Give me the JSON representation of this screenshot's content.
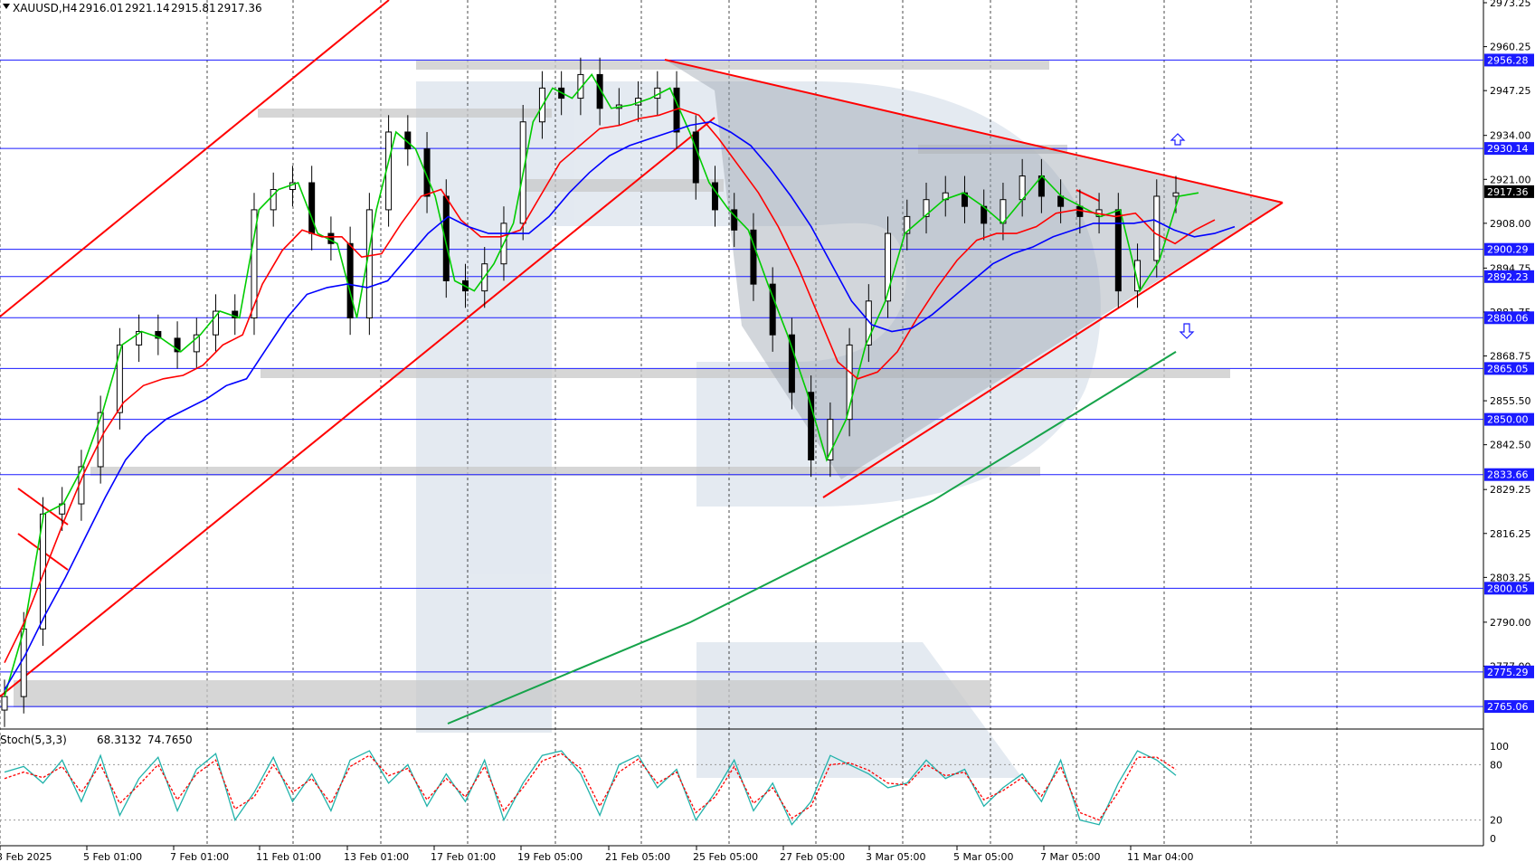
{
  "header": {
    "symbol": "XAUUSD,H4",
    "open": "2916.01",
    "high": "2921.14",
    "low": "2915.81",
    "close": "2917.36"
  },
  "indicator": {
    "label": "Stoch(5,3,3)",
    "main_value": "68.3132",
    "signal_value": "74.7650",
    "levels": [
      "100",
      "80",
      "20",
      "0"
    ]
  },
  "colors": {
    "level_line": "#1a1aff",
    "trend_line": "#ff0000",
    "ma_fast": "#00cc00",
    "ma_mid": "#ff0000",
    "ma_slow": "#0000ff",
    "ma_long": "#16a34a",
    "grid": "#000000",
    "zone_fill": "#c8c8c8",
    "arrow": "#1a1aff",
    "stoch_main": "#20b2aa",
    "stoch_signal": "#ff0000",
    "watermark": "#dfe6ef"
  },
  "chart_data": {
    "type": "line",
    "title": "XAUUSD,H4",
    "xlabel": "",
    "ylabel": "",
    "ylim": [
      2760,
      2973.25
    ],
    "grid": true,
    "x_ticks": [
      "3 Feb 2025",
      "5 Feb 01:00",
      "7 Feb 01:00",
      "11 Feb 01:00",
      "13 Feb 01:00",
      "17 Feb 01:00",
      "19 Feb 05:00",
      "21 Feb 05:00",
      "25 Feb 05:00",
      "27 Feb 05:00",
      "3 Mar 05:00",
      "5 Mar 05:00",
      "7 Mar 05:00",
      "11 Mar 04:00"
    ],
    "y_ticks": [
      "2973.25",
      "2960.25",
      "2947.25",
      "2934.00",
      "2921.00",
      "2908.00",
      "2894.75",
      "2881.75",
      "2868.75",
      "2855.50",
      "2842.50",
      "2829.25",
      "2816.25",
      "2803.25",
      "2790.00",
      "2777.00"
    ],
    "horizontal_levels": [
      "2956.28",
      "2930.14",
      "2900.29",
      "2892.23",
      "2880.06",
      "2865.05",
      "2850.00",
      "2833.66",
      "2800.05",
      "2775.29",
      "2765.06"
    ],
    "current_price": "2917.36",
    "series": [
      {
        "values": [
          2768,
          2788,
          2822,
          2825,
          2836,
          2852,
          2872,
          2876,
          2874,
          2870,
          2875,
          2882,
          2880,
          2912,
          2918,
          2920,
          2905,
          2902,
          2880,
          2912,
          2935,
          2930,
          2916,
          2891,
          2888,
          2896,
          2908,
          2938,
          2948,
          2945,
          2952,
          2942,
          2943,
          2945,
          2948,
          2935,
          2920,
          2912,
          2906,
          2890,
          2875,
          2858,
          2838,
          2850,
          2872,
          2885,
          2905,
          2910,
          2915,
          2917,
          2913,
          2908,
          2915,
          2922,
          2916,
          2913,
          2910,
          2912,
          2888,
          2897,
          2916,
          2917
        ]
      },
      {
        "values": [
          2778,
          2790,
          2805,
          2820,
          2834,
          2846,
          2855,
          2860,
          2862,
          2863,
          2866,
          2872,
          2875,
          2890,
          2900,
          2906,
          2904,
          2904,
          2898,
          2899,
          2908,
          2916,
          2918,
          2909,
          2904,
          2904,
          2906,
          2916,
          2926,
          2931,
          2936,
          2937,
          2939,
          2940,
          2942,
          2940,
          2933,
          2925,
          2917,
          2907,
          2895,
          2881,
          2867,
          2862,
          2864,
          2870,
          2880,
          2889,
          2897,
          2903,
          2905,
          2905,
          2907,
          2911,
          2912,
          2911,
          2910,
          2911,
          2905,
          2902,
          2906,
          2909
        ]
      },
      {
        "values": [
          2770,
          2780,
          2792,
          2803,
          2815,
          2827,
          2838,
          2845,
          2850,
          2853,
          2856,
          2860,
          2862,
          2871,
          2880,
          2887,
          2889,
          2890,
          2889,
          2891,
          2898,
          2905,
          2910,
          2907,
          2905,
          2905,
          2905,
          2910,
          2917,
          2923,
          2928,
          2931,
          2933,
          2935,
          2937,
          2938,
          2935,
          2931,
          2924,
          2916,
          2907,
          2896,
          2885,
          2878,
          2876,
          2877,
          2881,
          2886,
          2891,
          2896,
          2899,
          2901,
          2904,
          2906,
          2908,
          2908,
          2908,
          2909,
          2906,
          2904,
          2905,
          2907
        ]
      },
      {
        "values": [
          2760,
          2790,
          2826,
          2870
        ]
      },
      {
        "values": [
          72,
          78,
          60,
          85,
          40,
          90,
          25,
          65,
          88,
          30,
          75,
          92,
          20,
          50,
          88,
          40,
          70,
          30,
          85,
          95,
          60,
          80,
          35,
          70,
          40,
          85,
          20,
          60,
          90,
          95,
          70,
          25,
          80,
          90,
          55,
          75,
          20,
          50,
          85,
          30,
          60,
          15,
          40,
          90,
          80,
          70,
          55,
          60,
          85,
          65,
          75,
          35,
          55,
          70,
          40,
          85,
          20,
          15,
          60,
          95,
          85,
          68.3
        ]
      },
      {
        "values": [
          65,
          72,
          66,
          78,
          50,
          80,
          38,
          58,
          80,
          42,
          70,
          85,
          32,
          45,
          80,
          50,
          65,
          38,
          78,
          90,
          68,
          76,
          42,
          65,
          45,
          78,
          30,
          55,
          84,
          92,
          76,
          35,
          72,
          86,
          60,
          72,
          28,
          45,
          78,
          38,
          55,
          22,
          35,
          80,
          82,
          74,
          60,
          58,
          80,
          68,
          72,
          42,
          52,
          66,
          46,
          78,
          28,
          20,
          50,
          88,
          88,
          74.8
        ]
      }
    ]
  }
}
